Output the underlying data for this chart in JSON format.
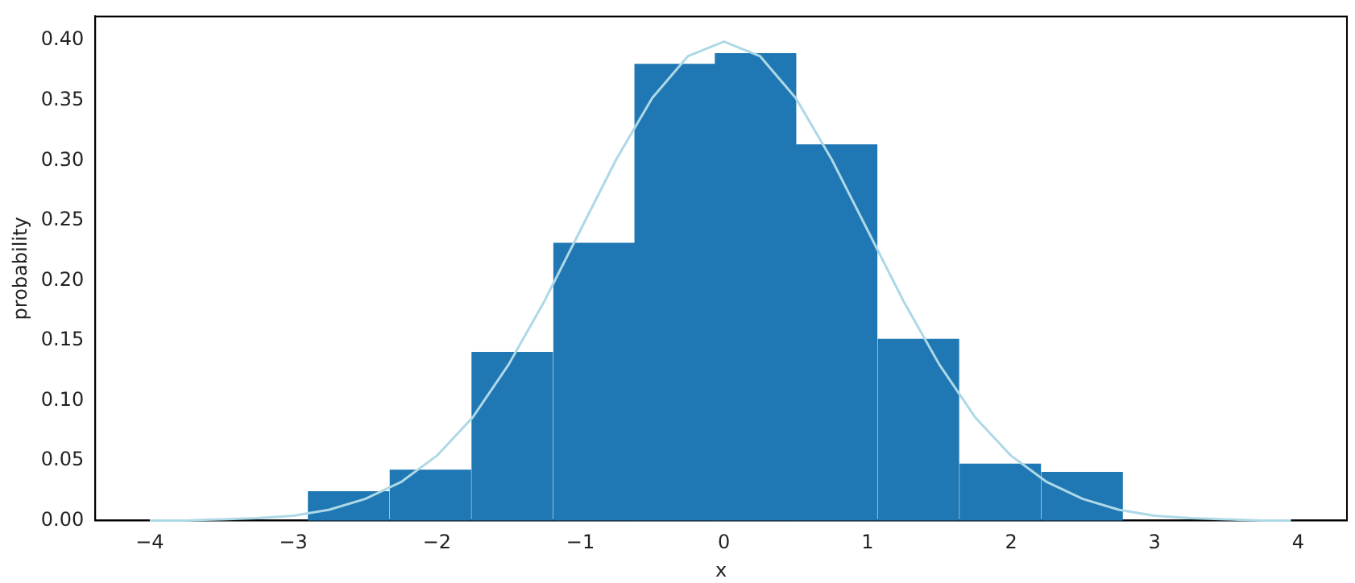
{
  "chart_data": {
    "type": "histogram",
    "xlabel": "x",
    "ylabel": "probability",
    "bins": [
      -2.9,
      -2.33,
      -1.76,
      -1.19,
      -0.62,
      -0.06,
      0.5,
      1.07,
      1.64,
      2.21,
      2.78
    ],
    "values": [
      0.024,
      0.042,
      0.14,
      0.231,
      0.38,
      0.389,
      0.313,
      0.151,
      0.047,
      0.04
    ],
    "color": "#1f77b4",
    "series": [
      {
        "type": "line",
        "color": "#add8e6",
        "x": [
          -4,
          -3.75,
          -3.5,
          -3.25,
          -3,
          -2.75,
          -2.5,
          -2.25,
          -2,
          -1.75,
          -1.5,
          -1.25,
          -1,
          -0.75,
          -0.5,
          -0.25,
          0,
          0.25,
          0.5,
          0.75,
          1,
          1.25,
          1.5,
          1.75,
          2,
          2.25,
          2.5,
          2.75,
          3,
          3.25,
          3.5,
          3.75,
          3.95
        ],
        "values": [
          0,
          0,
          0.001,
          0.002,
          0.004,
          0.009,
          0.018,
          0.032,
          0.054,
          0.086,
          0.13,
          0.183,
          0.242,
          0.301,
          0.352,
          0.387,
          0.399,
          0.387,
          0.352,
          0.301,
          0.242,
          0.183,
          0.13,
          0.086,
          0.054,
          0.032,
          0.018,
          0.009,
          0.004,
          0.002,
          0.001,
          0,
          0
        ]
      }
    ],
    "xlim": [
      -4.38,
      4.34
    ],
    "xticks": [
      -4,
      -3,
      -2,
      -1,
      0,
      1,
      2,
      3,
      4
    ],
    "ylim": [
      0,
      0.42
    ],
    "yticks": [
      {
        "value": 0,
        "label": "0.00"
      },
      {
        "value": 0.05,
        "label": "0.05"
      },
      {
        "value": 0.1,
        "label": "0.10"
      },
      {
        "value": 0.15,
        "label": "0.15"
      },
      {
        "value": 0.2,
        "label": "0.20"
      },
      {
        "value": 0.25,
        "label": "0.25"
      },
      {
        "value": 0.3,
        "label": "0.30"
      },
      {
        "value": 0.35,
        "label": "0.35"
      },
      {
        "value": 0.4,
        "label": "0.40"
      }
    ],
    "grid": false,
    "legend": false,
    "marker": "none",
    "line_style": "solid"
  }
}
